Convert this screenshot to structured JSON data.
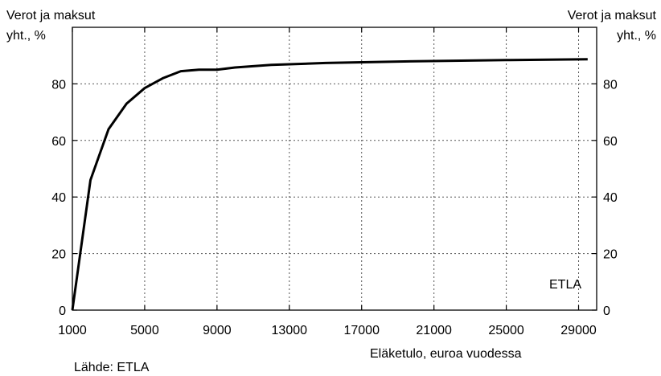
{
  "chart_data": {
    "type": "line",
    "ylabel_left": [
      "Verot ja maksut",
      "yht., %"
    ],
    "ylabel_right": [
      "Verot ja maksut",
      "yht., %"
    ],
    "xlabel": "Eläketulo, euroa vuodessa",
    "source": "Lähde: ETLA",
    "watermark": "ETLA",
    "xlim": [
      1000,
      30000
    ],
    "ylim": [
      0,
      100
    ],
    "x_ticks": [
      1000,
      5000,
      9000,
      13000,
      17000,
      21000,
      25000,
      29000
    ],
    "x_tick_labels": [
      "1000",
      "5000",
      "9000",
      "13000",
      "17000",
      "21000",
      "25000",
      "29000"
    ],
    "y_ticks": [
      0,
      20,
      40,
      60,
      80
    ],
    "y_tick_labels": [
      "0",
      "20",
      "40",
      "60",
      "80"
    ],
    "grid": true,
    "series": [
      {
        "color": "#000000",
        "x": [
          1000,
          2000,
          3000,
          4000,
          5000,
          6000,
          7000,
          8000,
          9000,
          10000,
          12000,
          15000,
          20000,
          25000,
          29500
        ],
        "y": [
          0,
          46,
          64,
          73,
          78.5,
          82,
          84.5,
          85,
          85,
          85.8,
          86.7,
          87.4,
          88,
          88.4,
          88.7
        ]
      }
    ]
  }
}
